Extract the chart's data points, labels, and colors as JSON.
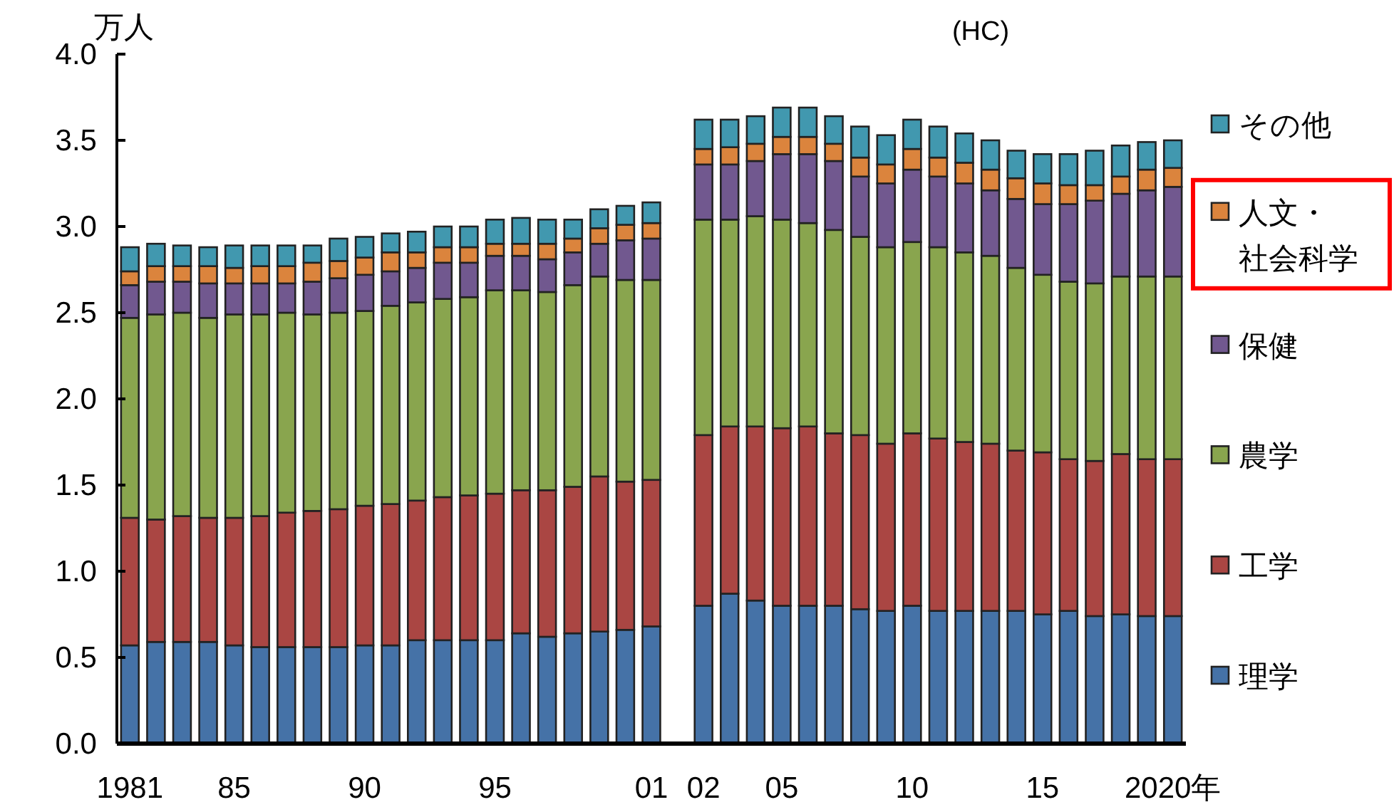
{
  "chart_data": {
    "type": "bar",
    "stacked": true,
    "ylabel": "万人",
    "subtitle": "(HC)",
    "legend": "right",
    "categories": [
      "1981",
      null,
      null,
      null,
      "85",
      null,
      null,
      null,
      null,
      "90",
      null,
      null,
      null,
      null,
      "95",
      null,
      null,
      null,
      null,
      null,
      "01",
      null,
      "02",
      null,
      null,
      "05",
      null,
      null,
      null,
      null,
      "10",
      null,
      null,
      null,
      null,
      "15",
      null,
      null,
      null,
      null,
      "2020年"
    ],
    "ylim": [
      0,
      4
    ],
    "yticks": [
      {
        "value": 0,
        "label": "0.0"
      },
      {
        "value": 0.5,
        "label": "0.5"
      },
      {
        "value": 1,
        "label": "1.0"
      },
      {
        "value": 1.5,
        "label": "1.5"
      },
      {
        "value": 2,
        "label": "2.0"
      },
      {
        "value": 2.5,
        "label": "2.5"
      },
      {
        "value": 3,
        "label": "3.0"
      },
      {
        "value": 3.5,
        "label": "3.5"
      },
      {
        "value": 4,
        "label": "4.0"
      }
    ],
    "series": [
      {
        "name": "理学",
        "color": "#4572a7",
        "values": [
          0.57,
          0.59,
          0.59,
          0.59,
          0.57,
          0.56,
          0.56,
          0.56,
          0.56,
          0.57,
          0.57,
          0.6,
          0.6,
          0.6,
          0.6,
          0.64,
          0.62,
          0.64,
          0.65,
          0.66,
          0.68,
          null,
          0.8,
          0.87,
          0.83,
          0.8,
          0.8,
          0.8,
          0.78,
          0.77,
          0.8,
          0.77,
          0.77,
          0.77,
          0.77,
          0.75,
          0.77,
          0.74,
          0.75,
          0.74,
          0.74
        ]
      },
      {
        "name": "工学",
        "color": "#aa4643",
        "values": [
          0.74,
          0.71,
          0.73,
          0.72,
          0.74,
          0.76,
          0.78,
          0.79,
          0.8,
          0.81,
          0.82,
          0.81,
          0.83,
          0.84,
          0.85,
          0.83,
          0.85,
          0.85,
          0.9,
          0.86,
          0.85,
          null,
          0.99,
          0.97,
          1.01,
          1.03,
          1.04,
          1.0,
          1.01,
          0.97,
          1.0,
          1.0,
          0.98,
          0.97,
          0.93,
          0.94,
          0.88,
          0.9,
          0.93,
          0.91,
          0.91
        ]
      },
      {
        "name": "農学",
        "color": "#89a54e",
        "values": [
          1.16,
          1.19,
          1.18,
          1.16,
          1.18,
          1.17,
          1.16,
          1.14,
          1.14,
          1.13,
          1.15,
          1.15,
          1.15,
          1.15,
          1.18,
          1.16,
          1.15,
          1.17,
          1.16,
          1.17,
          1.16,
          null,
          1.25,
          1.2,
          1.22,
          1.21,
          1.18,
          1.18,
          1.15,
          1.14,
          1.11,
          1.11,
          1.1,
          1.09,
          1.06,
          1.03,
          1.03,
          1.03,
          1.03,
          1.06,
          1.06
        ]
      },
      {
        "name": "保健",
        "color": "#71588f",
        "values": [
          0.19,
          0.19,
          0.18,
          0.2,
          0.18,
          0.18,
          0.17,
          0.19,
          0.2,
          0.21,
          0.2,
          0.2,
          0.21,
          0.2,
          0.2,
          0.2,
          0.19,
          0.19,
          0.19,
          0.23,
          0.24,
          null,
          0.32,
          0.32,
          0.32,
          0.38,
          0.4,
          0.4,
          0.35,
          0.37,
          0.42,
          0.41,
          0.4,
          0.38,
          0.4,
          0.41,
          0.45,
          0.48,
          0.48,
          0.5,
          0.52
        ]
      },
      {
        "name": "人文・社会科学",
        "color": "#db843d",
        "values": [
          0.08,
          0.09,
          0.09,
          0.1,
          0.09,
          0.1,
          0.1,
          0.11,
          0.1,
          0.1,
          0.11,
          0.09,
          0.09,
          0.09,
          0.07,
          0.07,
          0.09,
          0.08,
          0.09,
          0.09,
          0.09,
          null,
          0.09,
          0.1,
          0.1,
          0.1,
          0.1,
          0.1,
          0.11,
          0.11,
          0.12,
          0.11,
          0.12,
          0.12,
          0.12,
          0.12,
          0.11,
          0.09,
          0.1,
          0.12,
          0.11
        ]
      },
      {
        "name": "その他",
        "color": "#4198af",
        "values": [
          0.14,
          0.13,
          0.12,
          0.11,
          0.13,
          0.12,
          0.12,
          0.1,
          0.13,
          0.12,
          0.11,
          0.12,
          0.12,
          0.12,
          0.14,
          0.15,
          0.14,
          0.11,
          0.11,
          0.11,
          0.12,
          null,
          0.17,
          0.16,
          0.16,
          0.17,
          0.17,
          0.16,
          0.18,
          0.17,
          0.17,
          0.18,
          0.17,
          0.17,
          0.16,
          0.17,
          0.18,
          0.2,
          0.18,
          0.16,
          0.16
        ]
      }
    ]
  }
}
